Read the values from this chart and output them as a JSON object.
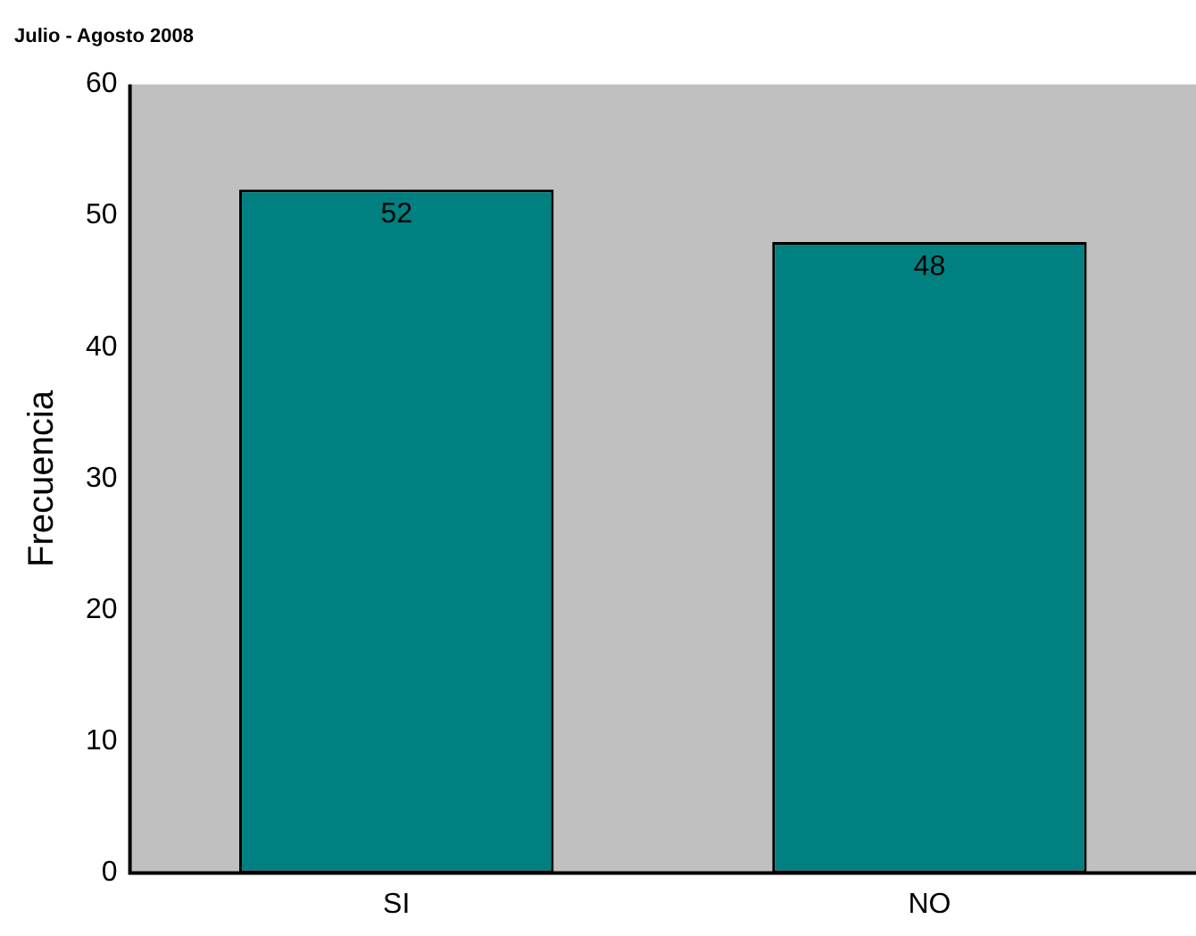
{
  "chart_data": {
    "type": "bar",
    "title": "Julio - Agosto 2008",
    "ylabel": "Frecuencia",
    "categories": [
      "SI",
      "NO"
    ],
    "values": [
      52,
      48
    ],
    "color": "#008080",
    "ylim": [
      0,
      60
    ],
    "yticks": [
      0,
      10,
      20,
      30,
      40,
      50,
      60
    ],
    "grid": false,
    "legend": false,
    "data_labels": true
  }
}
